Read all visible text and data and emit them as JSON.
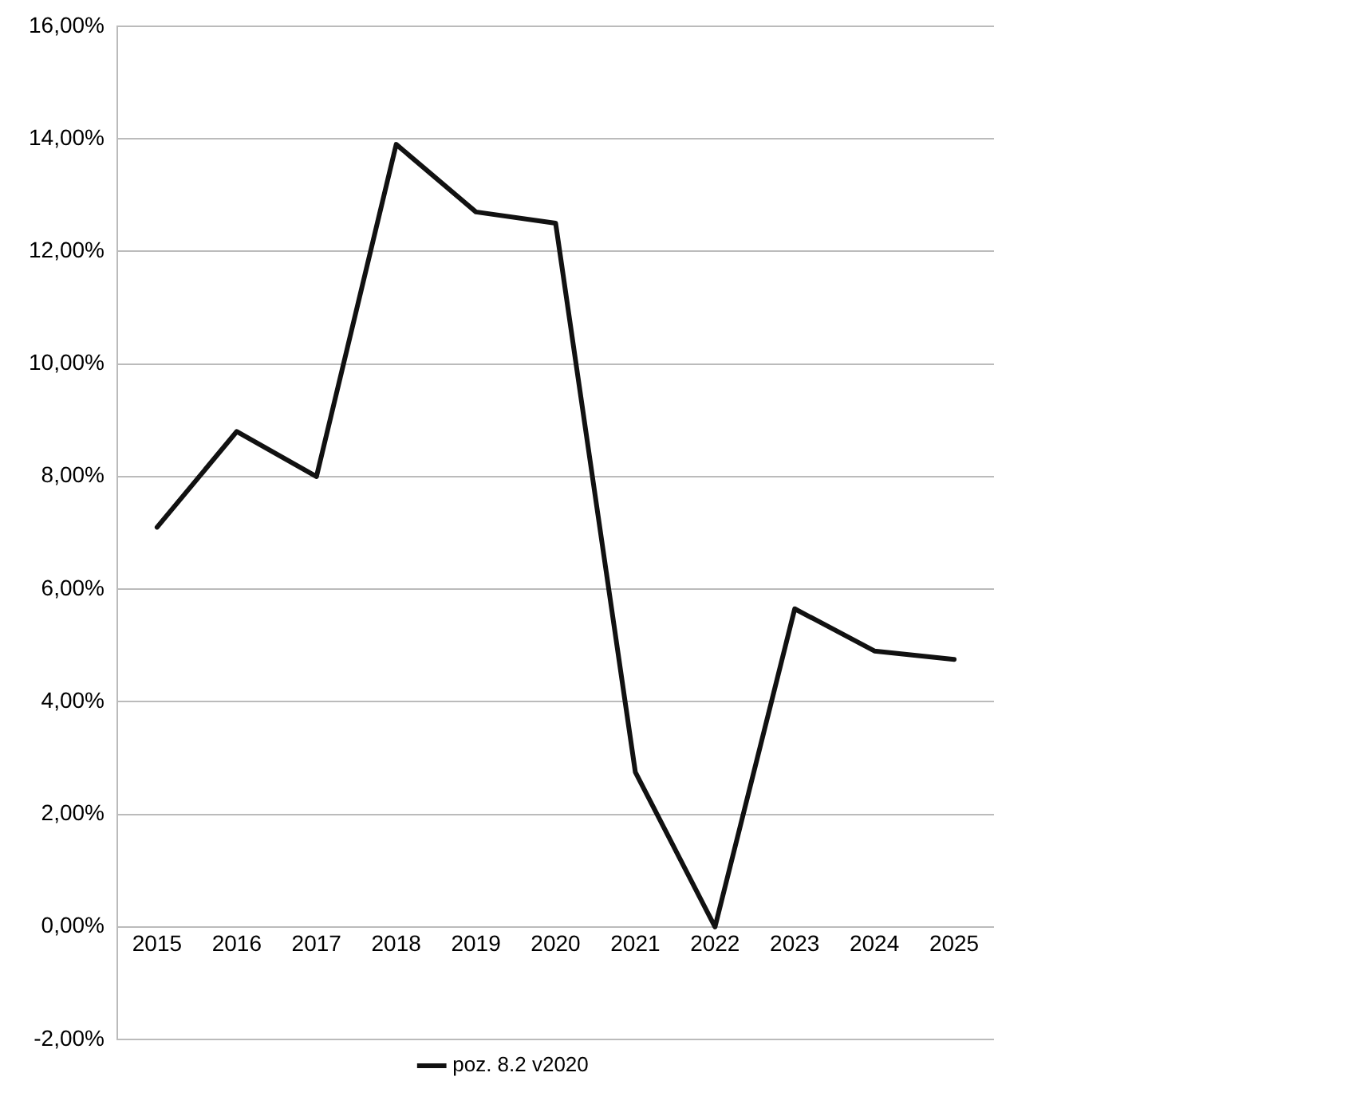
{
  "chart_data": {
    "type": "line",
    "categories": [
      "2015",
      "2016",
      "2017",
      "2018",
      "2019",
      "2020",
      "2021",
      "2022",
      "2023",
      "2024",
      "2025"
    ],
    "series": [
      {
        "name": "poz. 8.2 v2020",
        "color": "#111111",
        "values": [
          7.1,
          8.8,
          8.0,
          13.9,
          12.7,
          12.5,
          2.75,
          0,
          5.65,
          4.9,
          4.75
        ]
      }
    ],
    "ylim": [
      -2,
      16
    ],
    "yticks": [
      {
        "value": -2,
        "label": "-2,00%"
      },
      {
        "value": 0,
        "label": "0,00%"
      },
      {
        "value": 2,
        "label": "2,00%"
      },
      {
        "value": 4,
        "label": "4,00%"
      },
      {
        "value": 6,
        "label": "6,00%"
      },
      {
        "value": 8,
        "label": "8,00%"
      },
      {
        "value": 10,
        "label": "10,00%"
      },
      {
        "value": 12,
        "label": "12,00%"
      },
      {
        "value": 14,
        "label": "14,00%"
      },
      {
        "value": 16,
        "label": "16,00%"
      }
    ],
    "grid": "y",
    "legend": "bottom",
    "marker": "none",
    "line_style": "solid"
  }
}
